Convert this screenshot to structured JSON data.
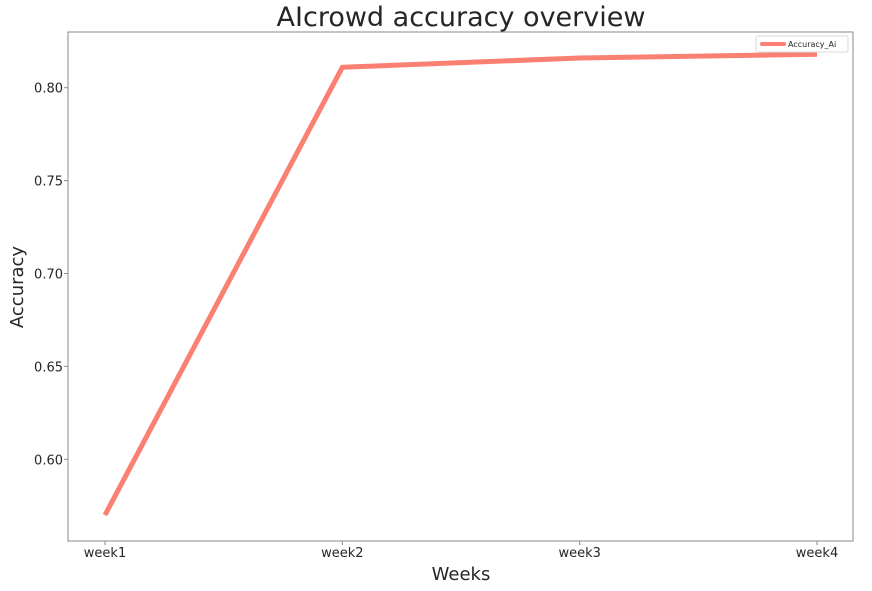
{
  "chart_data": {
    "type": "line",
    "title": "AIcrowd accuracy overview",
    "xlabel": "Weeks",
    "ylabel": "Accuracy",
    "categories": [
      "week1",
      "week2",
      "week3",
      "week4"
    ],
    "series": [
      {
        "name": "Accuracy_Ai",
        "values": [
          0.57,
          0.811,
          0.816,
          0.818
        ],
        "color": "#fa8072"
      }
    ],
    "yticks": [
      0.6,
      0.65,
      0.7,
      0.75,
      0.8
    ],
    "ytick_labels": [
      "0.60",
      "0.65",
      "0.70",
      "0.75",
      "0.80"
    ],
    "ylim": [
      0.556,
      0.83
    ],
    "grid": false,
    "legend_position": "top-right"
  }
}
